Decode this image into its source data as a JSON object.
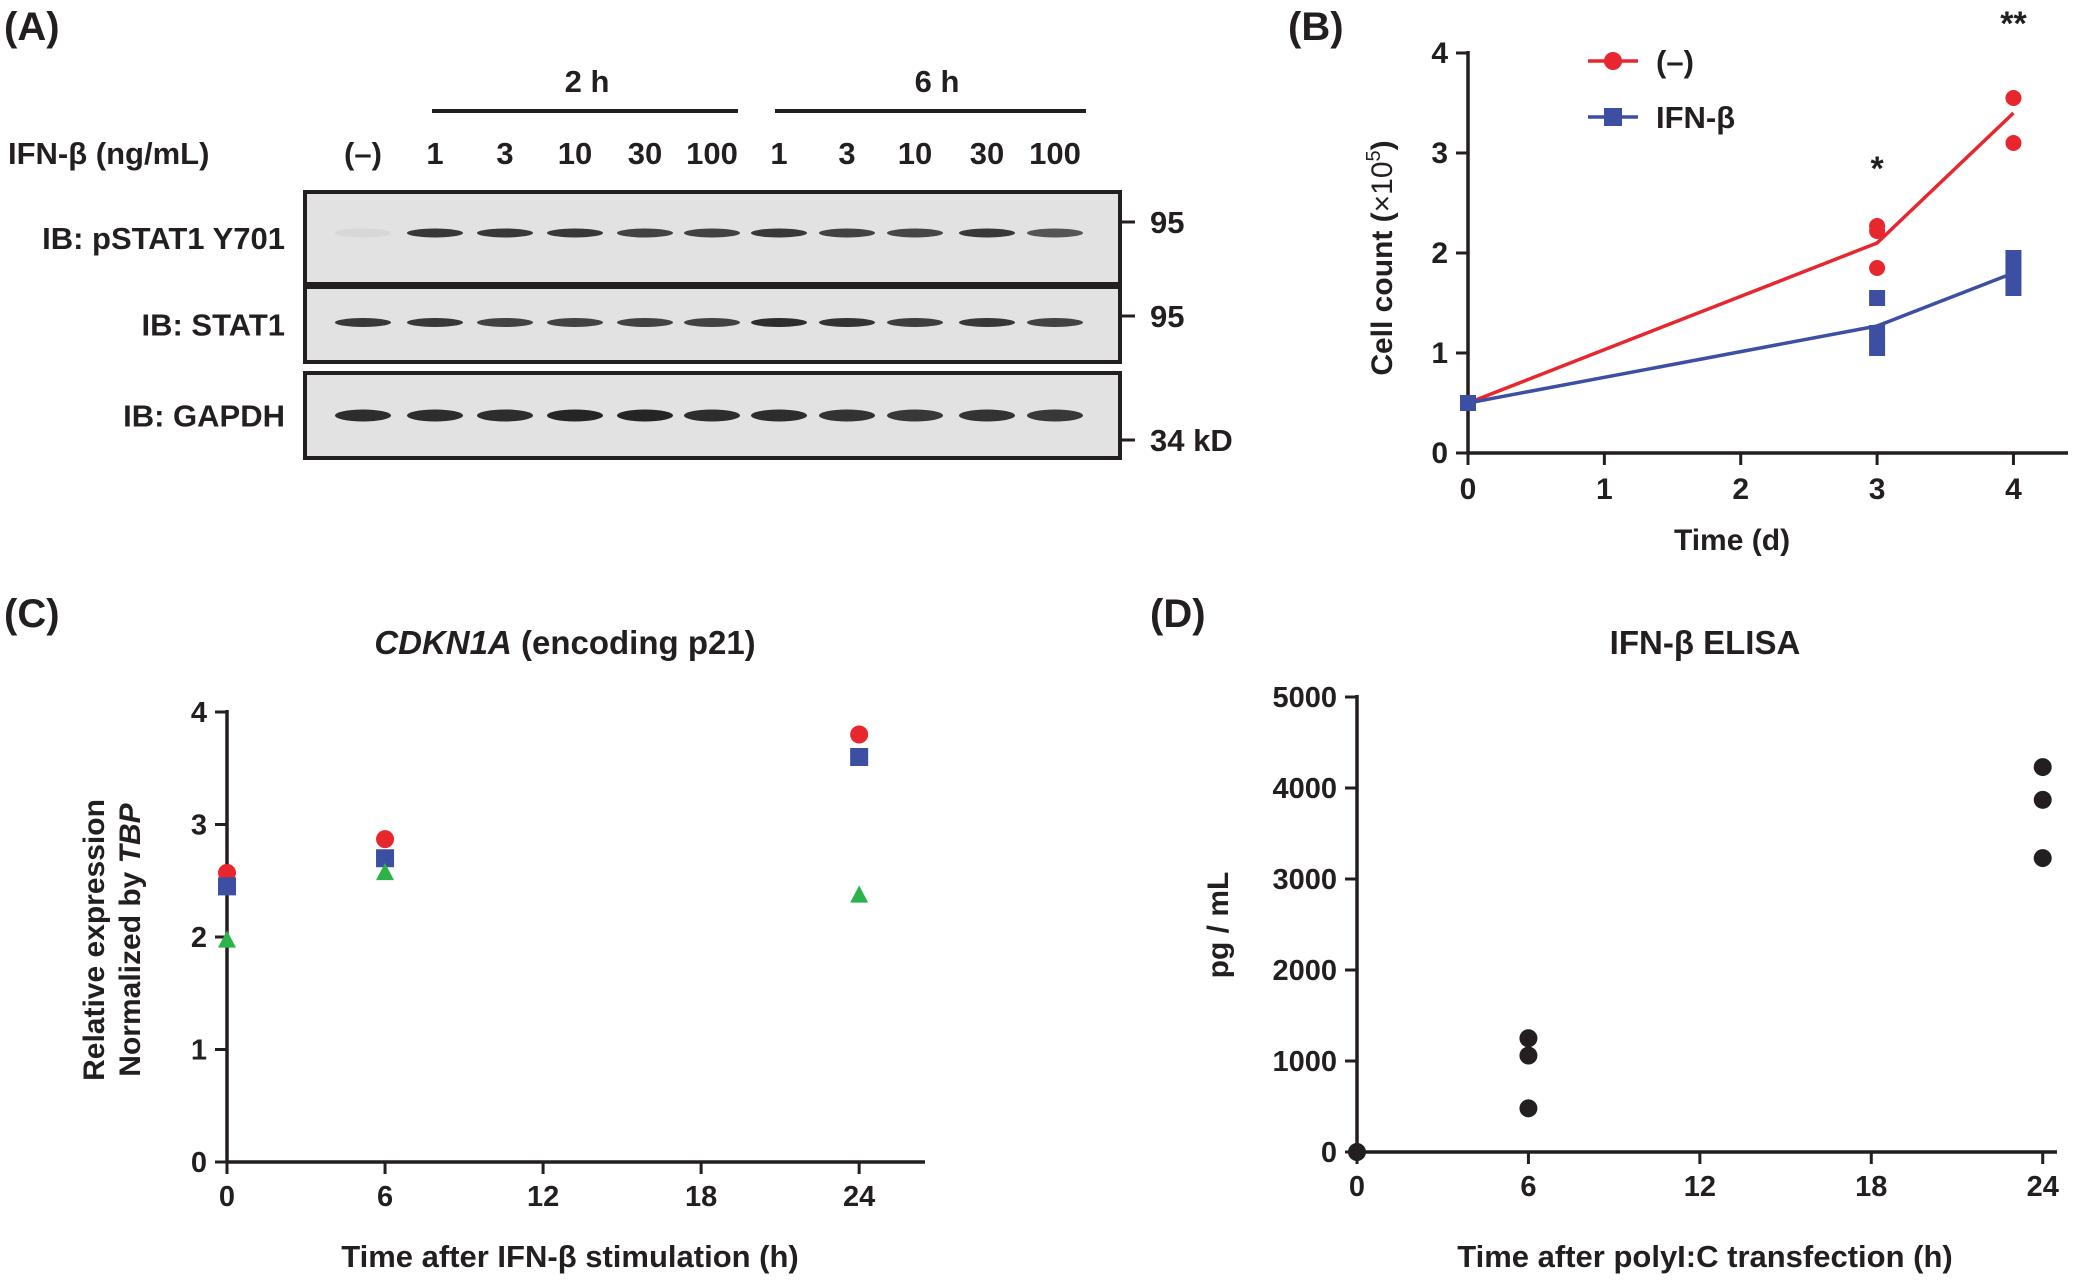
{
  "panel_a": {
    "label": "(A)",
    "time_labels": [
      "2 h",
      "6 h"
    ],
    "treatment_label": "IFN-β (ng/mL)",
    "lane_labels": [
      "(–)",
      "1",
      "3",
      "10",
      "30",
      "100",
      "1",
      "3",
      "10",
      "30",
      "100"
    ],
    "blots": [
      {
        "label": "IB: pSTAT1 Y701",
        "marker": "95",
        "band_intensity": [
          0.05,
          0.85,
          0.85,
          0.85,
          0.8,
          0.8,
          0.85,
          0.8,
          0.78,
          0.85,
          0.7
        ]
      },
      {
        "label": "IB: STAT1",
        "marker": "95",
        "band_intensity": [
          0.85,
          0.85,
          0.8,
          0.8,
          0.8,
          0.8,
          0.9,
          0.88,
          0.82,
          0.85,
          0.8
        ]
      },
      {
        "label": "IB: GAPDH",
        "marker": "34 kD",
        "band_intensity": [
          0.9,
          0.9,
          0.9,
          0.95,
          0.95,
          0.9,
          0.9,
          0.88,
          0.85,
          0.88,
          0.85
        ]
      }
    ]
  },
  "panel_b": {
    "label": "(B)",
    "asterisks": [
      "*",
      "**"
    ]
  },
  "panel_c": {
    "label": "(C)",
    "title_italic": "CDKN1A",
    "title_rest": " (encoding  p21)",
    "ylabel_line1": "Relative expression",
    "ylabel_prefix": "Normalized by ",
    "ylabel_italic": "TBP"
  },
  "panel_d": {
    "label": "(D)"
  },
  "chart_data": [
    {
      "panel": "B",
      "type": "line",
      "title": "",
      "xlabel": "Time (d)",
      "ylabel": "Cell count (×10⁵)",
      "ylabel_main": "Cell count (",
      "ylabel_unit": "×10",
      "ylabel_exp": "5",
      "ylabel_close": ")",
      "xlim": [
        0,
        4.4
      ],
      "ylim": [
        0,
        4
      ],
      "xticks": [
        "0",
        "1",
        "2",
        "3",
        "4"
      ],
      "yticks": [
        "0",
        "1",
        "2",
        "3",
        "4"
      ],
      "legend_position": "top-left",
      "series": [
        {
          "name": "(–)",
          "color": "#e8262e",
          "marker": "circle",
          "mean": [
            [
              0,
              0.5
            ],
            [
              3,
              2.1
            ],
            [
              4,
              3.4
            ]
          ],
          "points": [
            [
              0,
              0.5
            ],
            [
              3,
              2.27
            ],
            [
              3,
              2.22
            ],
            [
              3,
              1.85
            ],
            [
              4,
              3.55
            ],
            [
              4,
              3.1
            ]
          ]
        },
        {
          "name": "IFN-β",
          "color": "#3c4fa2",
          "marker": "square",
          "mean": [
            [
              0,
              0.5
            ],
            [
              3,
              1.27
            ],
            [
              4,
              1.8
            ]
          ],
          "points": [
            [
              0,
              0.5
            ],
            [
              3,
              1.55
            ],
            [
              3,
              1.2
            ],
            [
              3,
              1.05
            ],
            [
              4,
              1.95
            ],
            [
              4,
              1.8
            ],
            [
              4,
              1.65
            ]
          ]
        }
      ],
      "annotations": [
        {
          "text": "*",
          "x": 3,
          "y": 2.85
        },
        {
          "text": "**",
          "x": 4,
          "y": 4.3
        }
      ]
    },
    {
      "panel": "C",
      "type": "scatter",
      "title": "CDKN1A (encoding  p21)",
      "xlabel": "Time after IFN-β stimulation (h)",
      "ylabel": "Relative expression Normalized by TBP",
      "xlim": [
        0,
        26.5
      ],
      "ylim": [
        0,
        4
      ],
      "xticks": [
        "0",
        "6",
        "12",
        "18",
        "24"
      ],
      "yticks": [
        "0",
        "1",
        "2",
        "3",
        "4"
      ],
      "series": [
        {
          "color": "#e8262e",
          "marker": "circle",
          "points": [
            [
              0,
              2.57
            ],
            [
              6,
              2.87
            ],
            [
              24,
              3.8
            ]
          ]
        },
        {
          "color": "#3c4fa2",
          "marker": "square",
          "points": [
            [
              0,
              2.45
            ],
            [
              6,
              2.7
            ],
            [
              24,
              3.6
            ]
          ]
        },
        {
          "color": "#2bb34a",
          "marker": "triangle",
          "points": [
            [
              0,
              1.97
            ],
            [
              6,
              2.57
            ],
            [
              24,
              2.37
            ]
          ]
        }
      ]
    },
    {
      "panel": "D",
      "type": "scatter",
      "title": "IFN-β ELISA",
      "xlabel": "Time after polyI:C transfection (h)",
      "ylabel": "pg / mL",
      "xlim": [
        0,
        24.5
      ],
      "ylim": [
        0,
        5000
      ],
      "xticks": [
        "0",
        "6",
        "12",
        "18",
        "24"
      ],
      "yticks": [
        "0",
        "1000",
        "2000",
        "3000",
        "4000",
        "5000"
      ],
      "series": [
        {
          "color": "#231f20",
          "marker": "circle",
          "points": [
            [
              0,
              0
            ],
            [
              6,
              1250
            ],
            [
              6,
              1060
            ],
            [
              6,
              480
            ],
            [
              24,
              4230
            ],
            [
              24,
              3870
            ],
            [
              24,
              3230
            ]
          ]
        }
      ]
    }
  ]
}
